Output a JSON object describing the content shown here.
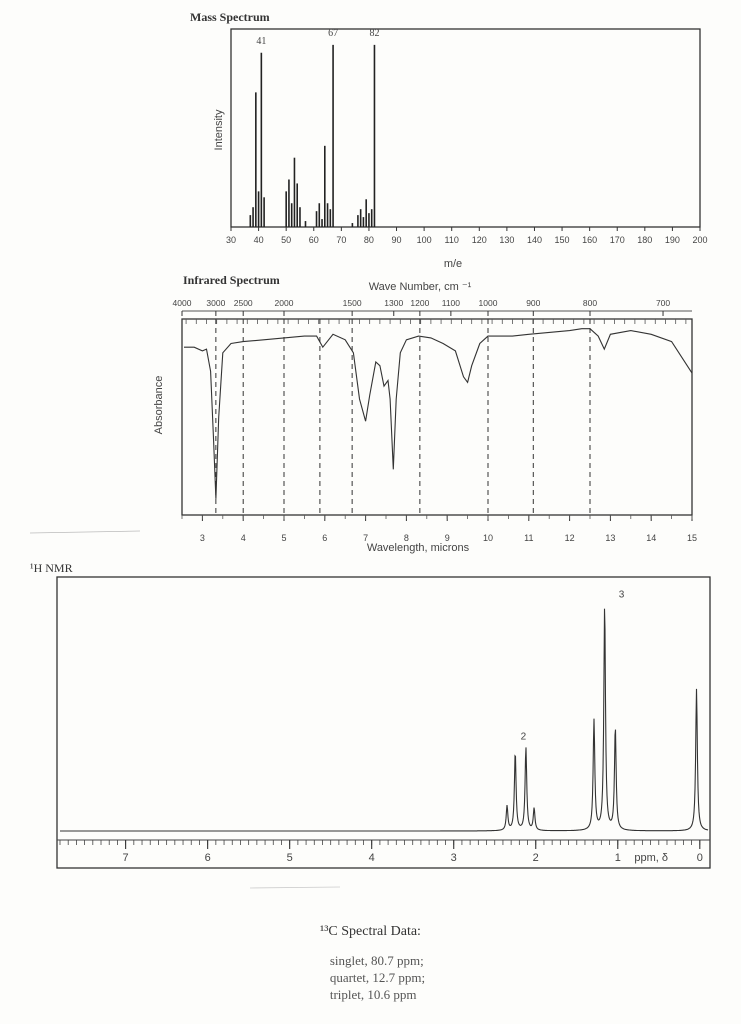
{
  "chart_data": [
    {
      "type": "bar",
      "title": "Mass Spectrum",
      "xlabel": "m/e",
      "ylabel": "Intensity",
      "xlim": [
        30,
        200
      ],
      "ylim": [
        0,
        100
      ],
      "xticks": [
        30,
        40,
        50,
        60,
        70,
        80,
        90,
        100,
        110,
        120,
        130,
        140,
        150,
        160,
        170,
        180,
        190,
        200
      ],
      "peaks": [
        {
          "x": 37,
          "y": 6
        },
        {
          "x": 38,
          "y": 10
        },
        {
          "x": 39,
          "y": 68
        },
        {
          "x": 40,
          "y": 18
        },
        {
          "x": 41,
          "y": 88
        },
        {
          "x": 42,
          "y": 15
        },
        {
          "x": 50,
          "y": 18
        },
        {
          "x": 51,
          "y": 24
        },
        {
          "x": 52,
          "y": 12
        },
        {
          "x": 53,
          "y": 35
        },
        {
          "x": 54,
          "y": 22
        },
        {
          "x": 55,
          "y": 10
        },
        {
          "x": 57,
          "y": 3
        },
        {
          "x": 61,
          "y": 8
        },
        {
          "x": 62,
          "y": 12
        },
        {
          "x": 63,
          "y": 4
        },
        {
          "x": 64,
          "y": 41
        },
        {
          "x": 65,
          "y": 12
        },
        {
          "x": 66,
          "y": 9
        },
        {
          "x": 67,
          "y": 92
        },
        {
          "x": 74,
          "y": 2
        },
        {
          "x": 76,
          "y": 6
        },
        {
          "x": 77,
          "y": 9
        },
        {
          "x": 78,
          "y": 5
        },
        {
          "x": 79,
          "y": 14
        },
        {
          "x": 80,
          "y": 7
        },
        {
          "x": 81,
          "y": 9
        },
        {
          "x": 82,
          "y": 92
        }
      ],
      "peak_labels": [
        {
          "x": 41,
          "text": "41"
        },
        {
          "x": 67,
          "text": "67"
        },
        {
          "x": 82,
          "text": "82"
        }
      ]
    },
    {
      "type": "line",
      "title": "Infrared Spectrum",
      "top_axis_label": "Wave Number, cm ⁻¹",
      "xlabel": "Wavelength, microns",
      "ylabel": "Absorbance",
      "xlim": [
        2.5,
        15
      ],
      "ylim": [
        0,
        1
      ],
      "bottom_ticks": [
        3,
        4,
        5,
        6,
        7,
        8,
        9,
        10,
        11,
        12,
        13,
        14,
        15
      ],
      "top_ticks": [
        {
          "label": "4000",
          "micron": 2.5
        },
        {
          "label": "3000",
          "micron": 3.33
        },
        {
          "label": "2500",
          "micron": 4.0
        },
        {
          "label": "2000",
          "micron": 5.0
        },
        {
          "label": "1500",
          "micron": 6.67
        },
        {
          "label": "1300",
          "micron": 7.69
        },
        {
          "label": "1200",
          "micron": 8.33
        },
        {
          "label": "1100",
          "micron": 9.09
        },
        {
          "label": "1000",
          "micron": 10.0
        },
        {
          "label": "900",
          "micron": 11.11
        },
        {
          "label": "800",
          "micron": 12.5
        },
        {
          "label": "700",
          "micron": 14.29
        }
      ],
      "dashed_lines": [
        3.33,
        4.0,
        5.0,
        5.88,
        6.67,
        8.33,
        10.0,
        11.11,
        12.5
      ],
      "x": [
        2.55,
        2.8,
        3.0,
        3.1,
        3.2,
        3.27,
        3.33,
        3.4,
        3.5,
        3.7,
        4.0,
        4.5,
        5.0,
        5.5,
        5.8,
        5.95,
        6.2,
        6.5,
        6.7,
        6.85,
        7.0,
        7.1,
        7.25,
        7.35,
        7.45,
        7.55,
        7.6,
        7.68,
        7.75,
        7.85,
        8.0,
        8.3,
        8.6,
        8.9,
        9.2,
        9.4,
        9.5,
        9.6,
        9.8,
        10.0,
        10.3,
        10.6,
        11.0,
        11.5,
        12.0,
        12.3,
        12.5,
        12.7,
        12.85,
        13.0,
        13.5,
        14.0,
        14.5,
        15.0
      ],
      "y": [
        0.12,
        0.12,
        0.14,
        0.13,
        0.25,
        0.6,
        0.94,
        0.5,
        0.15,
        0.1,
        0.09,
        0.08,
        0.07,
        0.06,
        0.06,
        0.12,
        0.05,
        0.08,
        0.15,
        0.4,
        0.52,
        0.38,
        0.2,
        0.22,
        0.33,
        0.3,
        0.4,
        0.78,
        0.4,
        0.15,
        0.08,
        0.06,
        0.07,
        0.1,
        0.14,
        0.28,
        0.31,
        0.22,
        0.1,
        0.06,
        0.06,
        0.06,
        0.05,
        0.04,
        0.03,
        0.02,
        0.02,
        0.06,
        0.13,
        0.05,
        0.03,
        0.05,
        0.09,
        0.26
      ]
    },
    {
      "type": "line",
      "title": "¹H NMR",
      "xlabel": "ppm, δ",
      "xlim": [
        7.8,
        -0.1
      ],
      "ylim": [
        0,
        100
      ],
      "xticks": [
        7,
        6,
        5,
        4,
        3,
        2,
        1,
        0
      ],
      "peaks": [
        {
          "ppm": 2.35,
          "h": 10
        },
        {
          "ppm": 2.25,
          "h": 32
        },
        {
          "ppm": 2.12,
          "h": 34
        },
        {
          "ppm": 2.02,
          "h": 9
        },
        {
          "ppm": 1.29,
          "h": 45
        },
        {
          "ppm": 1.16,
          "h": 92
        },
        {
          "ppm": 1.03,
          "h": 42
        },
        {
          "ppm": 0.04,
          "h": 58
        }
      ],
      "integrations": [
        {
          "ppm": 2.15,
          "label": "2"
        },
        {
          "ppm": 1.1,
          "label": "3"
        }
      ]
    }
  ],
  "c13": {
    "title": "¹³C Spectral Data:",
    "lines": [
      "singlet, 80.7 ppm;",
      "quartet, 12.7 ppm;",
      "triplet, 10.6 ppm"
    ]
  }
}
